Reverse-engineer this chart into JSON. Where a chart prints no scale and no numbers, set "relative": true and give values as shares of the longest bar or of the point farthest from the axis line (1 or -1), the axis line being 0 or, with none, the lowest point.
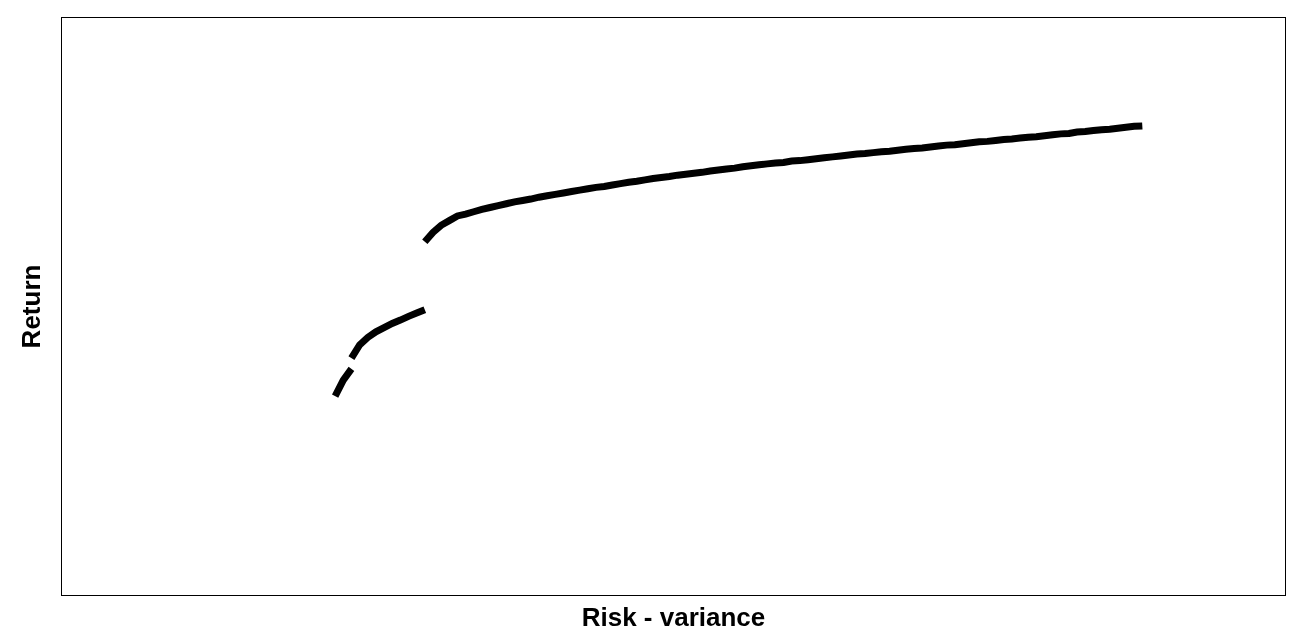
{
  "chart_data": {
    "type": "line",
    "xlabel": "Risk - variance",
    "ylabel": "Return",
    "relative": true,
    "tick_labels": false,
    "categories": [
      null,
      null,
      null,
      null,
      null,
      null,
      null,
      null,
      null,
      null,
      null,
      null,
      null,
      null,
      null,
      null,
      null,
      null,
      null,
      null,
      null,
      null,
      null,
      null,
      null,
      null,
      null,
      null,
      null,
      null,
      null,
      null,
      null,
      null,
      null,
      null,
      null,
      null,
      null,
      null,
      null,
      null,
      null,
      null,
      null,
      null,
      null,
      null,
      null,
      null,
      null,
      null,
      null,
      null,
      null,
      null,
      null,
      null,
      null,
      null,
      null,
      null,
      null,
      null,
      null,
      null,
      null,
      null,
      null,
      null,
      null,
      null,
      null,
      null,
      null,
      null,
      null,
      null,
      null,
      null,
      null,
      null,
      null,
      null,
      null,
      null,
      null,
      null,
      null,
      null,
      null,
      null,
      null,
      null,
      null,
      null,
      null,
      null,
      null,
      null,
      null,
      null,
      null,
      null,
      null,
      null,
      null,
      null,
      null,
      null,
      null,
      null,
      null,
      null,
      null,
      null,
      null,
      null,
      null,
      null,
      null,
      null,
      null,
      null,
      null,
      null,
      null,
      null,
      null,
      null,
      null,
      null,
      null,
      null,
      null,
      null,
      null,
      null,
      null,
      null,
      null,
      null,
      null,
      null,
      null,
      null,
      null,
      null,
      null,
      null
    ],
    "series": [
      {
        "color": "#000000",
        "values": [
          null,
          null,
          null,
          null,
          null,
          null,
          null,
          null,
          null,
          null,
          null,
          null,
          null,
          null,
          null,
          null,
          null,
          null,
          null,
          null,
          null,
          null,
          null,
          null,
          null,
          null,
          null,
          null,
          null,
          null,
          null,
          null,
          null,
          0.424,
          0.458,
          0.482,
          null,
          null,
          null,
          null,
          null,
          null,
          null,
          null,
          null,
          null,
          null,
          null,
          null,
          null,
          null,
          null,
          null,
          null,
          null,
          null,
          null,
          null,
          null,
          null,
          null,
          null,
          null,
          null,
          null,
          null,
          null,
          null,
          null,
          null,
          null,
          null,
          null,
          null,
          null,
          null,
          null,
          null,
          null,
          null,
          null,
          null,
          null,
          null,
          null,
          null,
          null,
          null,
          null,
          null,
          null,
          null,
          null,
          null,
          null,
          null,
          null,
          null,
          null,
          null,
          null,
          null,
          null,
          null,
          null,
          null,
          null,
          null,
          null,
          null,
          null,
          null,
          null,
          null,
          null,
          null,
          null,
          null,
          null,
          null,
          null,
          null,
          null,
          null,
          null,
          null,
          null,
          null,
          null,
          null,
          null,
          null,
          null,
          null,
          null,
          null,
          null,
          null,
          null,
          null,
          null,
          null,
          null,
          null,
          null,
          null,
          null,
          null,
          null,
          null
        ]
      },
      {
        "color": "#000000",
        "values": [
          null,
          null,
          null,
          null,
          null,
          null,
          null,
          null,
          null,
          null,
          null,
          null,
          null,
          null,
          null,
          null,
          null,
          null,
          null,
          null,
          null,
          null,
          null,
          null,
          null,
          null,
          null,
          null,
          null,
          null,
          null,
          null,
          null,
          null,
          null,
          0.505,
          0.533,
          0.549,
          0.561,
          0.57,
          0.579,
          0.586,
          0.594,
          0.601,
          0.608,
          null,
          null,
          null,
          null,
          null,
          null,
          null,
          null,
          null,
          null,
          null,
          null,
          null,
          null,
          null,
          null,
          null,
          null,
          null,
          null,
          null,
          null,
          null,
          null,
          null,
          null,
          null,
          null,
          null,
          null,
          null,
          null,
          null,
          null,
          null,
          null,
          null,
          null,
          null,
          null,
          null,
          null,
          null,
          null,
          null,
          null,
          null,
          null,
          null,
          null,
          null,
          null,
          null,
          null,
          null,
          null,
          null,
          null,
          null,
          null,
          null,
          null,
          null,
          null,
          null,
          null,
          null,
          null,
          null,
          null,
          null,
          null,
          null,
          null,
          null,
          null,
          null,
          null,
          null,
          null,
          null,
          null,
          null,
          null,
          null,
          null,
          null,
          null,
          null,
          null,
          null,
          null,
          null,
          null,
          null,
          null,
          null,
          null,
          null,
          null,
          null,
          null,
          null,
          null,
          null
        ]
      },
      {
        "color": "#000000",
        "values": [
          null,
          null,
          null,
          null,
          null,
          null,
          null,
          null,
          null,
          null,
          null,
          null,
          null,
          null,
          null,
          null,
          null,
          null,
          null,
          null,
          null,
          null,
          null,
          null,
          null,
          null,
          null,
          null,
          null,
          null,
          null,
          null,
          null,
          null,
          null,
          null,
          null,
          null,
          null,
          null,
          null,
          null,
          null,
          null,
          0.753,
          0.773,
          0.788,
          0.798,
          0.808,
          0.812,
          0.817,
          0.822,
          0.826,
          0.83,
          0.834,
          0.838,
          0.841,
          0.844,
          0.848,
          0.851,
          0.854,
          0.857,
          0.86,
          0.863,
          0.866,
          0.869,
          0.871,
          0.874,
          0.877,
          0.88,
          0.882,
          0.885,
          0.888,
          0.89,
          0.892,
          0.895,
          0.897,
          0.899,
          0.901,
          0.904,
          0.906,
          0.908,
          0.91,
          0.913,
          0.915,
          0.917,
          0.919,
          0.921,
          0.922,
          0.925,
          0.926,
          0.928,
          0.93,
          0.932,
          0.934,
          0.936,
          0.938,
          0.94,
          0.941,
          0.943,
          0.945,
          0.946,
          0.948,
          0.95,
          0.952,
          0.953,
          0.955,
          0.957,
          0.959,
          0.96,
          0.962,
          0.964,
          0.966,
          0.967,
          0.969,
          0.971,
          0.972,
          0.974,
          0.976,
          0.977,
          0.979,
          0.981,
          0.983,
          0.984,
          0.987,
          0.988,
          0.99,
          0.992,
          0.993,
          0.995,
          0.997,
          0.999,
          1,
          null,
          null,
          null,
          null,
          null,
          null,
          null,
          null,
          null,
          null,
          null,
          null,
          null,
          null,
          null,
          null,
          null
        ]
      }
    ]
  }
}
